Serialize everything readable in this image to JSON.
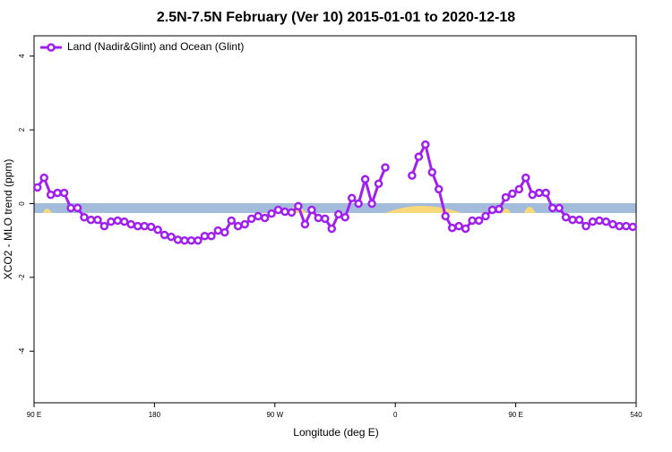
{
  "chart_data": {
    "type": "line",
    "title": "2.5N-7.5N February (Ver 10)   2015-01-01 to 2020-12-18",
    "x_label": "Longitude (deg E)",
    "y_label": "XCO2 - MLO trend (ppm)",
    "x": [
      92.5,
      97.5,
      102.5,
      107.5,
      112.5,
      117.5,
      122.5,
      127.5,
      132.5,
      137.5,
      142.5,
      147.5,
      152.5,
      157.5,
      162.5,
      167.5,
      172.5,
      177.5,
      182.5,
      187.5,
      192.5,
      197.5,
      202.5,
      207.5,
      212.5,
      217.5,
      222.5,
      227.5,
      232.5,
      237.5,
      242.5,
      247.5,
      252.5,
      257.5,
      262.5,
      267.5,
      272.5,
      277.5,
      282.5,
      287.5,
      292.5,
      297.5,
      302.5,
      307.5,
      312.5,
      317.5,
      322.5,
      327.5,
      332.5,
      337.5,
      342.5,
      347.5,
      352.5,
      357.5,
      362.5,
      367.5,
      372.5,
      377.5,
      382.5,
      387.5,
      392.5,
      397.5,
      402.5,
      407.5,
      412.5,
      417.5,
      422.5,
      427.5,
      432.5,
      437.5,
      442.5,
      447.5,
      452.5,
      457.5,
      462.5,
      467.5,
      472.5,
      477.5,
      482.5,
      487.5,
      492.5,
      497.5,
      502.5,
      507.5,
      512.5,
      517.5,
      522.5,
      527.5,
      532.5,
      537.5
    ],
    "series": [
      {
        "name": "Land (Nadir&Glint) and Ocean (Glint)",
        "color": "#a020f0",
        "values": [
          0.44,
          0.7,
          0.24,
          0.29,
          0.29,
          -0.12,
          -0.12,
          -0.37,
          -0.44,
          -0.44,
          -0.61,
          -0.49,
          -0.46,
          -0.49,
          -0.56,
          -0.61,
          -0.61,
          -0.63,
          -0.71,
          -0.85,
          -0.9,
          -0.98,
          -1.0,
          -1.0,
          -1.0,
          -0.88,
          -0.88,
          -0.73,
          -0.78,
          -0.46,
          -0.61,
          -0.56,
          -0.41,
          -0.34,
          -0.39,
          -0.27,
          -0.17,
          -0.22,
          -0.24,
          -0.07,
          -0.56,
          -0.17,
          -0.39,
          -0.41,
          -0.68,
          -0.29,
          -0.37,
          0.15,
          0,
          0.66,
          0,
          0.54,
          0.98,
          null,
          null,
          null,
          0.76,
          1.27,
          1.6,
          0.85,
          0.39,
          -0.34,
          -0.66,
          -0.61,
          -0.68,
          -0.46,
          -0.46,
          -0.34,
          -0.17,
          -0.15,
          0.17,
          0.27,
          0.39,
          0.7,
          0.24,
          0.29,
          0.29,
          -0.12,
          -0.12,
          -0.37,
          -0.44,
          -0.44,
          -0.61,
          -0.49,
          -0.46,
          -0.49,
          -0.56,
          -0.61,
          -0.61,
          -0.63
        ]
      }
    ],
    "xlim": [
      90,
      540
    ],
    "xticks": [
      {
        "value": 90,
        "label": "90 E"
      },
      180,
      {
        "value": 270,
        "label": "90 W"
      },
      {
        "value": 360,
        "label": "0"
      },
      {
        "value": 450,
        "label": "90 E"
      },
      540
    ],
    "ylim": [
      -5.4,
      4.55
    ],
    "yticks": [
      -4,
      -2,
      0,
      2,
      4
    ],
    "legend": "top-left"
  }
}
